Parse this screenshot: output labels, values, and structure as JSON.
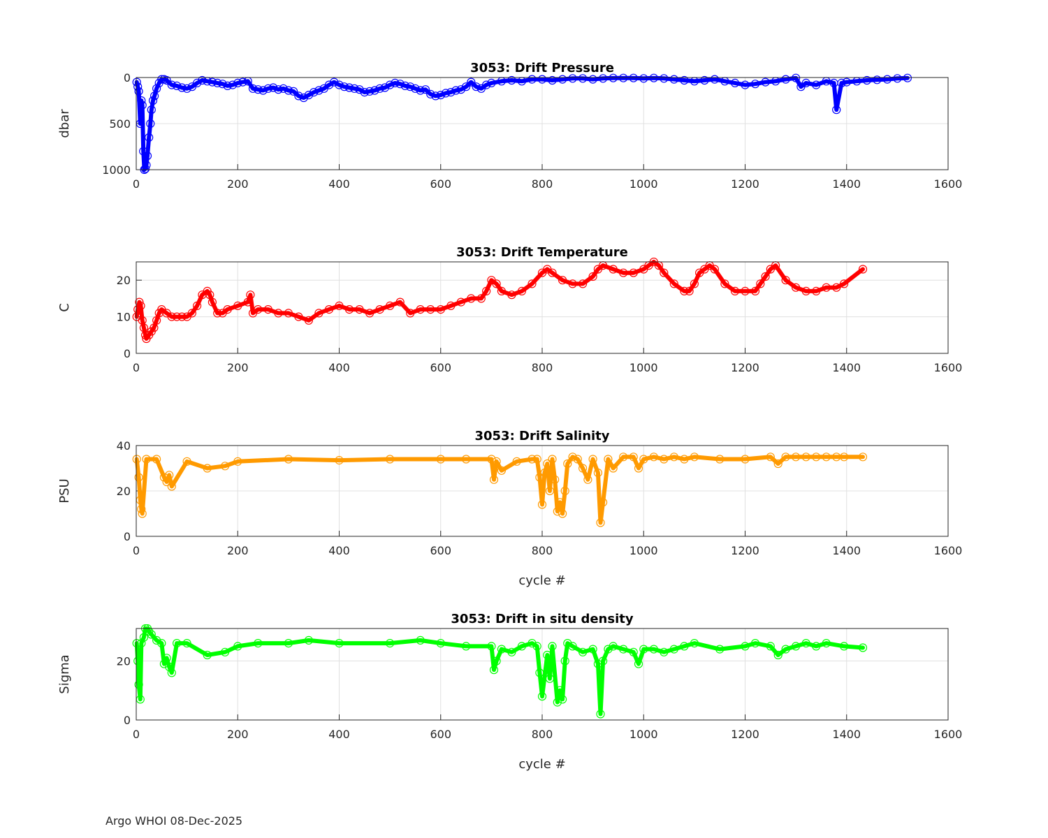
{
  "footer": "Argo WHOI 08-Dec-2025",
  "chart_data": [
    {
      "type": "scatter",
      "title": "3053: Drift Pressure",
      "xlabel": "",
      "ylabel": "dbar",
      "xlim": [
        0,
        1600
      ],
      "ylim": [
        1000,
        0
      ],
      "y_reversed": true,
      "xticks": [
        0,
        200,
        400,
        600,
        800,
        1000,
        1200,
        1400,
        1600
      ],
      "yticks": [
        0,
        500,
        1000
      ],
      "grid": true,
      "color": "#0000ff",
      "marker": "circle",
      "x": [
        1,
        3,
        5,
        8,
        10,
        12,
        14,
        16,
        18,
        20,
        22,
        25,
        28,
        30,
        33,
        36,
        40,
        45,
        50,
        55,
        60,
        70,
        80,
        90,
        100,
        110,
        120,
        130,
        140,
        150,
        160,
        170,
        180,
        190,
        200,
        210,
        220,
        230,
        240,
        250,
        260,
        270,
        280,
        290,
        300,
        310,
        320,
        330,
        340,
        350,
        360,
        370,
        380,
        390,
        400,
        410,
        420,
        430,
        440,
        450,
        460,
        470,
        480,
        490,
        500,
        510,
        520,
        530,
        540,
        550,
        560,
        570,
        580,
        590,
        600,
        610,
        620,
        630,
        640,
        650,
        660,
        670,
        680,
        690,
        700,
        720,
        740,
        760,
        780,
        800,
        820,
        840,
        860,
        880,
        900,
        920,
        940,
        960,
        980,
        1000,
        1020,
        1040,
        1060,
        1080,
        1100,
        1120,
        1140,
        1160,
        1180,
        1200,
        1220,
        1240,
        1260,
        1280,
        1300,
        1310,
        1320,
        1340,
        1360,
        1375,
        1380,
        1390,
        1400,
        1420,
        1440,
        1460,
        1480,
        1500,
        1520
      ],
      "y": [
        50,
        100,
        150,
        500,
        250,
        300,
        800,
        1000,
        990,
        950,
        850,
        650,
        500,
        350,
        250,
        200,
        120,
        60,
        20,
        20,
        30,
        80,
        90,
        110,
        120,
        100,
        60,
        30,
        40,
        50,
        60,
        70,
        90,
        80,
        60,
        50,
        40,
        120,
        130,
        140,
        120,
        110,
        130,
        120,
        140,
        150,
        200,
        220,
        190,
        160,
        140,
        120,
        80,
        50,
        80,
        100,
        110,
        120,
        130,
        160,
        150,
        140,
        120,
        110,
        80,
        60,
        70,
        90,
        100,
        120,
        140,
        130,
        180,
        200,
        190,
        170,
        160,
        140,
        130,
        100,
        50,
        100,
        120,
        80,
        60,
        40,
        30,
        40,
        20,
        20,
        30,
        20,
        10,
        10,
        20,
        10,
        5,
        5,
        5,
        10,
        5,
        10,
        20,
        30,
        40,
        30,
        20,
        40,
        60,
        80,
        70,
        50,
        40,
        20,
        5,
        100,
        60,
        80,
        40,
        60,
        350,
        60,
        50,
        40,
        30,
        25,
        20,
        10,
        5
      ]
    },
    {
      "type": "scatter",
      "title": "3053: Drift Temperature",
      "xlabel": "",
      "ylabel": "C",
      "xlim": [
        0,
        1600
      ],
      "ylim": [
        0,
        25
      ],
      "xticks": [
        0,
        200,
        400,
        600,
        800,
        1000,
        1200,
        1400,
        1600
      ],
      "yticks": [
        0,
        10,
        20
      ],
      "grid": true,
      "color": "#ff0000",
      "marker": "circle",
      "x": [
        1,
        3,
        6,
        9,
        12,
        15,
        18,
        20,
        25,
        30,
        35,
        40,
        45,
        50,
        60,
        70,
        80,
        90,
        100,
        110,
        120,
        130,
        140,
        145,
        150,
        160,
        170,
        180,
        200,
        220,
        225,
        230,
        240,
        260,
        280,
        300,
        320,
        340,
        360,
        380,
        400,
        420,
        440,
        460,
        480,
        500,
        520,
        540,
        560,
        580,
        600,
        620,
        640,
        660,
        680,
        690,
        700,
        710,
        720,
        740,
        760,
        780,
        800,
        810,
        820,
        840,
        860,
        880,
        900,
        910,
        920,
        940,
        960,
        980,
        1000,
        1010,
        1020,
        1030,
        1040,
        1060,
        1080,
        1090,
        1100,
        1110,
        1120,
        1130,
        1140,
        1160,
        1180,
        1200,
        1220,
        1230,
        1240,
        1250,
        1260,
        1280,
        1300,
        1320,
        1340,
        1360,
        1380,
        1395,
        1432
      ],
      "y": [
        10,
        12,
        14,
        13,
        9,
        7,
        5,
        4,
        5,
        6,
        7,
        9,
        11,
        12,
        11,
        10,
        10,
        10,
        10,
        11,
        13,
        16,
        17,
        16,
        14,
        11,
        11,
        12,
        13,
        14,
        16,
        11,
        12,
        12,
        11,
        11,
        10,
        9,
        11,
        12,
        13,
        12,
        12,
        11,
        12,
        13,
        14,
        11,
        12,
        12,
        12,
        13,
        14,
        15,
        15,
        17,
        20,
        19,
        17,
        16,
        17,
        19,
        22,
        23,
        22,
        20,
        19,
        19,
        21,
        23,
        24,
        23,
        22,
        22,
        23,
        24,
        25,
        24,
        22,
        19,
        17,
        17,
        19,
        22,
        23,
        24,
        23,
        19,
        17,
        17,
        17,
        19,
        21,
        23,
        24,
        20,
        18,
        17,
        17,
        18,
        18,
        19,
        23
      ]
    },
    {
      "type": "scatter",
      "title": "3053: Drift Salinity",
      "xlabel": "cycle #",
      "ylabel": "PSU",
      "xlim": [
        0,
        1600
      ],
      "ylim": [
        0,
        40
      ],
      "xticks": [
        0,
        200,
        400,
        600,
        800,
        1000,
        1200,
        1400,
        1600
      ],
      "yticks": [
        0,
        20,
        40
      ],
      "grid": true,
      "color": "#ff9a00",
      "marker": "circle",
      "x": [
        1,
        5,
        8,
        10,
        12,
        20,
        40,
        55,
        60,
        65,
        70,
        100,
        140,
        175,
        200,
        300,
        400,
        500,
        600,
        650,
        700,
        705,
        710,
        720,
        750,
        780,
        790,
        795,
        800,
        805,
        810,
        815,
        820,
        825,
        830,
        835,
        840,
        845,
        850,
        860,
        870,
        880,
        890,
        900,
        910,
        915,
        920,
        930,
        940,
        960,
        980,
        990,
        1000,
        1020,
        1040,
        1060,
        1080,
        1100,
        1150,
        1200,
        1250,
        1265,
        1280,
        1300,
        1320,
        1340,
        1360,
        1380,
        1395,
        1432
      ],
      "y": [
        34,
        26,
        16,
        12,
        10,
        34,
        34,
        26,
        24,
        27,
        22,
        33,
        30,
        31,
        33,
        34,
        33.5,
        34,
        34,
        34,
        34,
        25,
        33,
        29,
        33,
        34,
        34,
        26,
        14,
        28,
        32,
        20,
        34,
        25,
        11,
        15,
        10,
        20,
        32,
        35,
        34,
        30,
        25,
        34,
        28,
        6,
        15,
        34,
        30,
        35,
        35,
        30,
        34,
        35,
        34,
        35,
        34,
        35,
        34,
        34,
        35,
        32,
        35,
        35,
        35,
        35,
        35,
        35,
        35,
        35
      ]
    },
    {
      "type": "scatter",
      "title": "3053: Drift in situ density",
      "xlabel": "cycle #",
      "ylabel": "Sigma",
      "xlim": [
        0,
        1600
      ],
      "ylim": [
        0,
        31
      ],
      "xticks": [
        0,
        200,
        400,
        600,
        800,
        1000,
        1200,
        1400,
        1600
      ],
      "yticks": [
        0,
        20
      ],
      "grid": true,
      "color": "#00ff00",
      "marker": "circle",
      "x": [
        1,
        3,
        5,
        8,
        10,
        15,
        18,
        22,
        25,
        30,
        40,
        50,
        55,
        60,
        65,
        70,
        80,
        100,
        140,
        175,
        200,
        240,
        300,
        340,
        400,
        500,
        560,
        600,
        650,
        700,
        705,
        710,
        720,
        740,
        760,
        780,
        790,
        795,
        800,
        810,
        815,
        820,
        830,
        835,
        840,
        845,
        850,
        860,
        880,
        900,
        910,
        915,
        920,
        930,
        940,
        960,
        980,
        990,
        1000,
        1020,
        1040,
        1060,
        1080,
        1100,
        1150,
        1200,
        1220,
        1250,
        1265,
        1280,
        1300,
        1320,
        1340,
        1360,
        1395,
        1432
      ],
      "y": [
        26,
        20,
        12,
        7,
        26,
        28,
        31,
        31,
        30,
        29,
        27,
        26,
        19,
        21,
        18,
        16,
        26,
        26,
        22,
        23,
        25,
        26,
        26,
        27,
        26,
        26,
        27,
        26,
        25,
        25,
        17,
        20,
        24,
        23,
        25,
        26,
        25,
        16,
        8,
        22,
        14,
        25,
        6,
        10,
        7,
        20,
        26,
        25,
        23,
        24,
        19,
        2,
        20,
        24,
        25,
        24,
        23,
        19,
        24,
        24,
        23,
        24,
        25,
        26,
        24,
        25,
        26,
        25,
        22,
        24,
        25,
        26,
        25,
        26,
        25,
        24.5
      ]
    }
  ]
}
